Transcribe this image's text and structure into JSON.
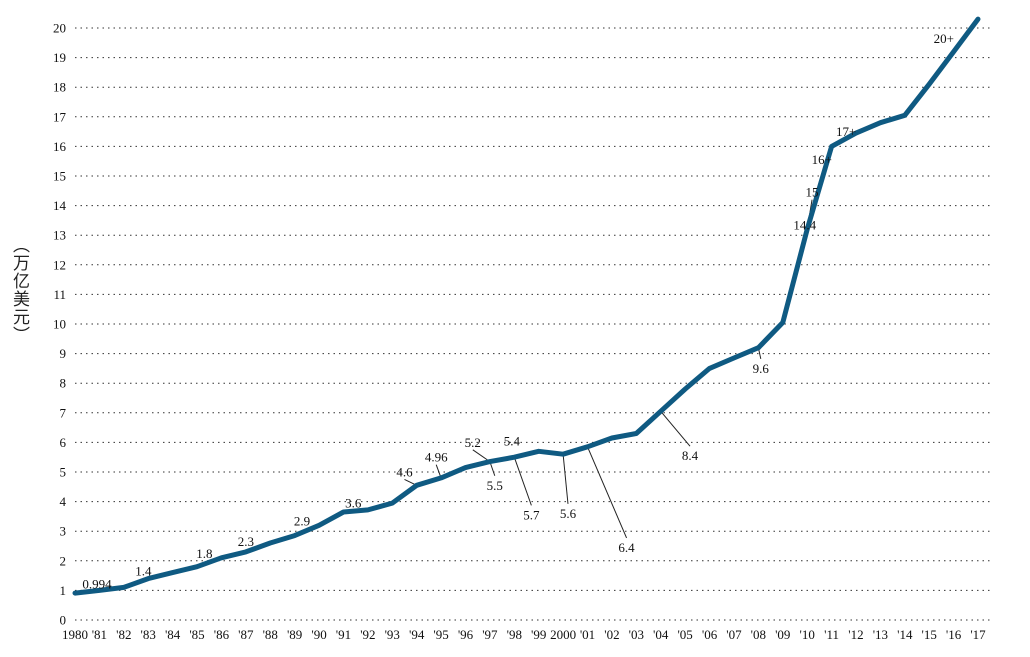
{
  "chart_data": {
    "type": "line",
    "title": "",
    "xlabel": "",
    "ylabel": "（万亿美元）",
    "ylim": [
      0,
      20.3
    ],
    "grid": "dotted horizontal",
    "line_color": "#0f5a82",
    "y_ticks": [
      "0",
      "1",
      "2",
      "3",
      "4",
      "5",
      "6",
      "7",
      "8",
      "9",
      "10",
      "11",
      "12",
      "13",
      "14",
      "15",
      "16",
      "17",
      "18",
      "19",
      "20"
    ],
    "x_ticks": [
      "1980",
      "'81",
      "'82",
      "'83",
      "'84",
      "'85",
      "'86",
      "'87",
      "'88",
      "'89",
      "'90",
      "'91",
      "'92",
      "'93",
      "'94",
      "'95",
      "'96",
      "'97",
      "'98",
      "'99",
      "2000",
      "'01",
      "'02",
      "'03",
      "'04",
      "'05",
      "'06",
      "'07",
      "'08",
      "'09",
      "'10",
      "'11",
      "'12",
      "'13",
      "'14",
      "'15",
      "'16",
      "'17"
    ],
    "series": [
      {
        "points": [
          [
            1980,
            0.91
          ],
          [
            1981,
            1.0
          ],
          [
            1982,
            1.1
          ],
          [
            1983,
            1.4
          ],
          [
            1984,
            1.6
          ],
          [
            1985,
            1.8
          ],
          [
            1986,
            2.1
          ],
          [
            1987,
            2.3
          ],
          [
            1988,
            2.6
          ],
          [
            1989,
            2.85
          ],
          [
            1990,
            3.2
          ],
          [
            1991,
            3.65
          ],
          [
            1992,
            3.72
          ],
          [
            1993,
            3.95
          ],
          [
            1994,
            4.55
          ],
          [
            1995,
            4.8
          ],
          [
            1996,
            5.15
          ],
          [
            1997,
            5.35
          ],
          [
            1998,
            5.5
          ],
          [
            1999,
            5.7
          ],
          [
            2000,
            5.6
          ],
          [
            2001,
            5.85
          ],
          [
            2002,
            6.15
          ],
          [
            2003,
            6.3
          ],
          [
            2004,
            7.05
          ],
          [
            2005,
            7.8
          ],
          [
            2006,
            8.5
          ],
          [
            2007,
            8.85
          ],
          [
            2008,
            9.2
          ],
          [
            2009,
            10.05
          ],
          [
            2010,
            13.2
          ],
          [
            2011,
            16.0
          ],
          [
            2012,
            16.45
          ],
          [
            2013,
            16.8
          ],
          [
            2014,
            17.05
          ],
          [
            2015,
            18.1
          ],
          [
            2016,
            19.2
          ],
          [
            2017,
            20.3
          ]
        ]
      }
    ],
    "annotations": [
      {
        "text": "0.994",
        "x": 1980.9,
        "y": 1.07
      },
      {
        "text": "1.4",
        "x": 1982.8,
        "y": 1.5
      },
      {
        "text": "1.8",
        "x": 1985.3,
        "y": 2.1
      },
      {
        "text": "2.3",
        "x": 1987.0,
        "y": 2.5
      },
      {
        "text": "2.9",
        "x": 1989.3,
        "y": 3.2
      },
      {
        "text": "3.6",
        "x": 1991.4,
        "y": 3.8
      },
      {
        "text": "4.6",
        "x": 1993.5,
        "y": 4.85
      },
      {
        "text": "4.96",
        "x": 1994.8,
        "y": 5.35
      },
      {
        "text": "5.2",
        "x": 1996.3,
        "y": 5.85
      },
      {
        "text": "5.4",
        "x": 1997.9,
        "y": 5.9
      },
      {
        "text": "5.5",
        "x": 1997.2,
        "y": 4.4
      },
      {
        "text": "5.7",
        "x": 1998.7,
        "y": 3.4
      },
      {
        "text": "5.6",
        "x": 2000.2,
        "y": 3.45
      },
      {
        "text": "6.4",
        "x": 2002.6,
        "y": 2.3
      },
      {
        "text": "8.4",
        "x": 2005.2,
        "y": 5.4
      },
      {
        "text": "9.6",
        "x": 2008.1,
        "y": 8.35
      },
      {
        "text": "14.4",
        "x": 2009.9,
        "y": 13.2
      },
      {
        "text": "15",
        "x": 2010.2,
        "y": 14.3
      },
      {
        "text": "16+",
        "x": 2010.6,
        "y": 15.4
      },
      {
        "text": "17+",
        "x": 2011.6,
        "y": 16.35
      },
      {
        "text": "20+",
        "x": 2015.6,
        "y": 19.5
      }
    ]
  }
}
